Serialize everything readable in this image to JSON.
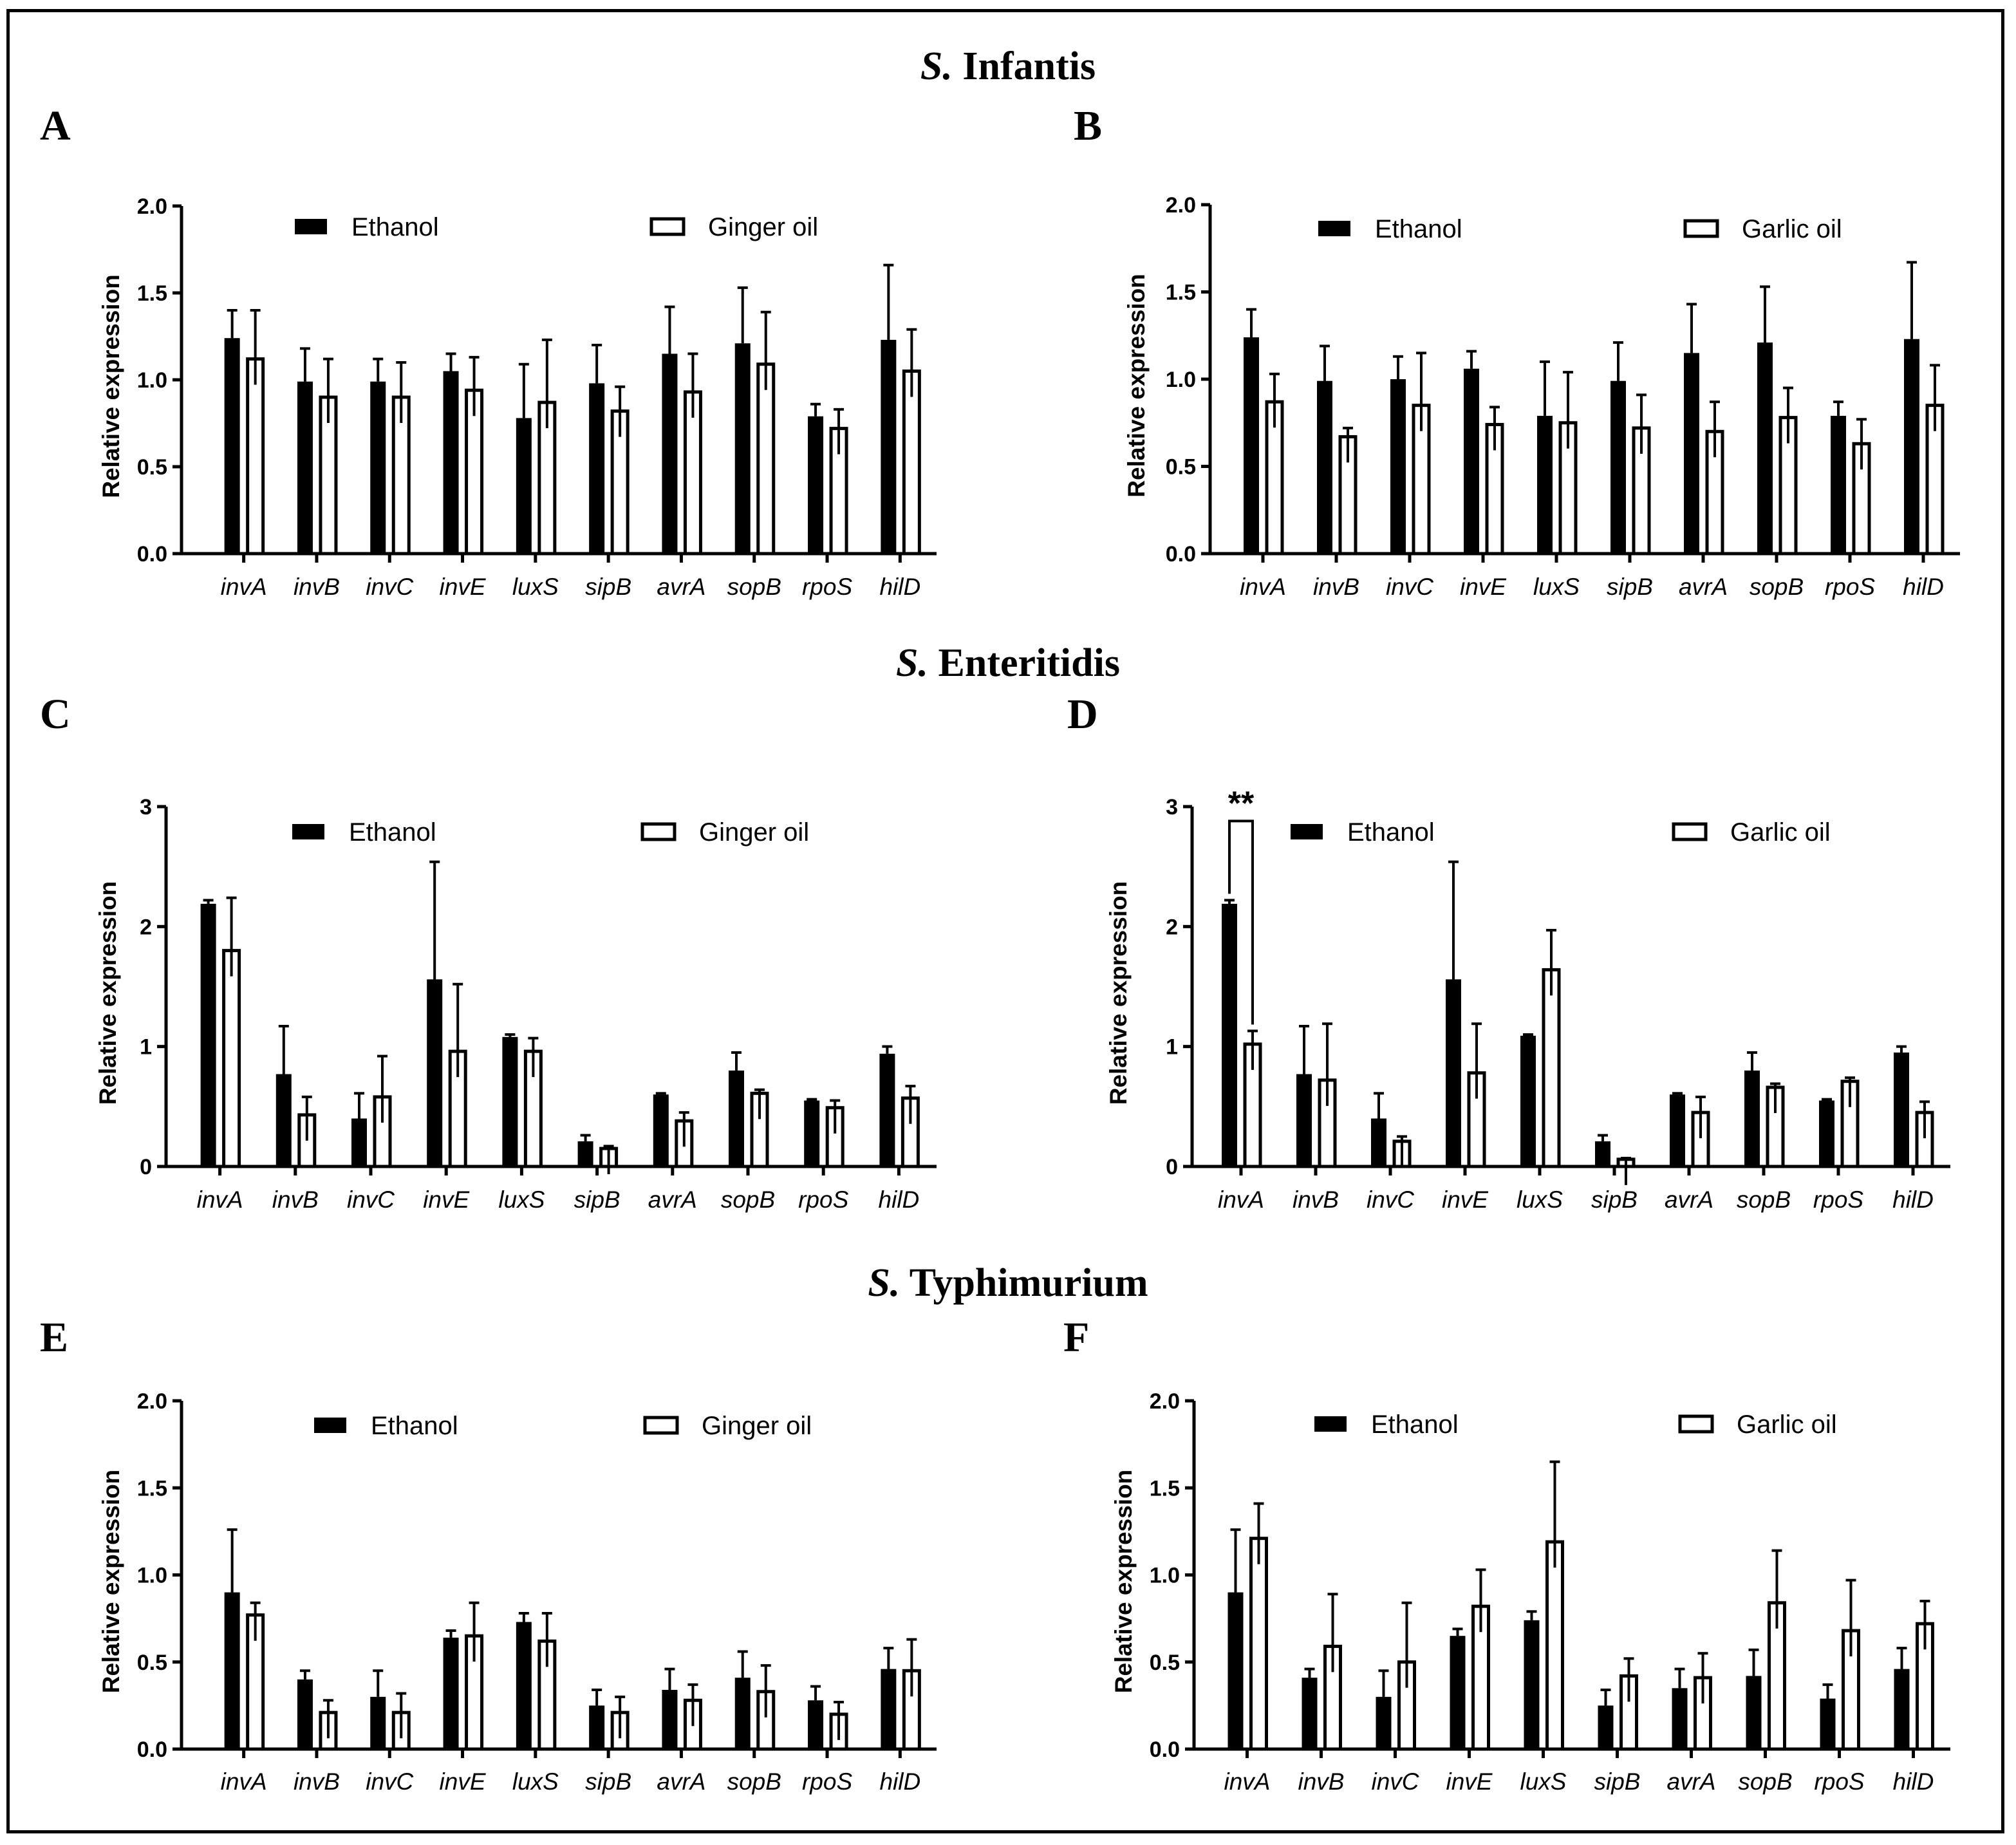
{
  "sections": [
    {
      "prefix": "S.",
      "name": "Infantis"
    },
    {
      "prefix": "S.",
      "name": "Enteritidis"
    },
    {
      "prefix": "S.",
      "name": "Typhimurium"
    }
  ],
  "colors": {
    "ethanol_fill": "#000000",
    "oil_fill": "#ffffff",
    "stroke": "#000000"
  },
  "chart_data": [
    {
      "panel": "A",
      "type": "bar",
      "ylabel": "Relative expression",
      "ylim": [
        0,
        2.0
      ],
      "yticks": [
        "0.0",
        "0.5",
        "1.0",
        "1.5",
        "2.0"
      ],
      "categories": [
        "invA",
        "invB",
        "invC",
        "invE",
        "luxS",
        "sipB",
        "avrA",
        "sopB",
        "rpoS",
        "hilD"
      ],
      "series": [
        {
          "name": "Ethanol",
          "values": [
            1.24,
            0.99,
            0.99,
            1.05,
            0.78,
            0.98,
            1.15,
            1.21,
            0.79,
            1.23
          ],
          "errors": [
            0.16,
            0.19,
            0.13,
            0.1,
            0.31,
            0.22,
            0.27,
            0.32,
            0.07,
            0.43
          ]
        },
        {
          "name": "Ginger oil",
          "values": [
            1.12,
            0.9,
            0.9,
            0.94,
            0.87,
            0.82,
            0.93,
            1.09,
            0.72,
            1.05
          ],
          "errors": [
            0.28,
            0.22,
            0.2,
            0.19,
            0.36,
            0.14,
            0.22,
            0.3,
            0.11,
            0.24
          ]
        }
      ],
      "annotations": []
    },
    {
      "panel": "B",
      "type": "bar",
      "ylabel": "Relative expression",
      "ylim": [
        0,
        2.0
      ],
      "yticks": [
        "0.0",
        "0.5",
        "1.0",
        "1.5",
        "2.0"
      ],
      "categories": [
        "invA",
        "invB",
        "invC",
        "invE",
        "luxS",
        "sipB",
        "avrA",
        "sopB",
        "rpoS",
        "hilD"
      ],
      "series": [
        {
          "name": "Ethanol",
          "values": [
            1.24,
            0.99,
            1.0,
            1.06,
            0.79,
            0.99,
            1.15,
            1.21,
            0.79,
            1.23
          ],
          "errors": [
            0.16,
            0.2,
            0.13,
            0.1,
            0.31,
            0.22,
            0.28,
            0.32,
            0.08,
            0.44
          ]
        },
        {
          "name": "Garlic oil",
          "values": [
            0.87,
            0.67,
            0.85,
            0.74,
            0.75,
            0.72,
            0.7,
            0.78,
            0.63,
            0.85
          ],
          "errors": [
            0.16,
            0.05,
            0.3,
            0.1,
            0.29,
            0.19,
            0.17,
            0.17,
            0.14,
            0.23
          ]
        }
      ],
      "annotations": []
    },
    {
      "panel": "C",
      "type": "bar",
      "ylabel": "Relative expression",
      "ylim": [
        0,
        3
      ],
      "yticks": [
        "0",
        "1",
        "2",
        "3"
      ],
      "categories": [
        "invA",
        "invB",
        "invC",
        "invE",
        "luxS",
        "sipB",
        "avrA",
        "sopB",
        "rpoS",
        "hilD"
      ],
      "series": [
        {
          "name": "Ethanol",
          "values": [
            2.19,
            0.77,
            0.4,
            1.56,
            1.08,
            0.21,
            0.6,
            0.8,
            0.55,
            0.94
          ],
          "errors": [
            0.03,
            0.4,
            0.21,
            0.98,
            0.02,
            0.05,
            0.01,
            0.15,
            0.01,
            0.06
          ]
        },
        {
          "name": "Ginger oil",
          "values": [
            1.8,
            0.43,
            0.58,
            0.96,
            0.96,
            0.15,
            0.38,
            0.61,
            0.49,
            0.57
          ],
          "errors": [
            0.44,
            0.15,
            0.34,
            0.56,
            0.11,
            0.02,
            0.07,
            0.03,
            0.06,
            0.1
          ]
        }
      ],
      "annotations": []
    },
    {
      "panel": "D",
      "type": "bar",
      "ylabel": "Relative expression",
      "ylim": [
        0,
        3
      ],
      "yticks": [
        "0",
        "1",
        "2",
        "3"
      ],
      "categories": [
        "invA",
        "invB",
        "invC",
        "invE",
        "luxS",
        "sipB",
        "avrA",
        "sopB",
        "rpoS",
        "hilD"
      ],
      "series": [
        {
          "name": "Ethanol",
          "values": [
            2.19,
            0.77,
            0.4,
            1.56,
            1.09,
            0.21,
            0.6,
            0.8,
            0.55,
            0.95
          ],
          "errors": [
            0.03,
            0.4,
            0.21,
            0.98,
            0.01,
            0.05,
            0.01,
            0.15,
            0.01,
            0.05
          ]
        },
        {
          "name": "Garlic oil",
          "values": [
            1.02,
            0.72,
            0.21,
            0.78,
            1.64,
            0.06,
            0.45,
            0.66,
            0.71,
            0.45
          ],
          "errors": [
            0.11,
            0.47,
            0.04,
            0.41,
            0.33,
            0.01,
            0.13,
            0.03,
            0.03,
            0.09
          ]
        }
      ],
      "annotations": [
        {
          "text": "**",
          "category": "invA",
          "y": 2.9
        }
      ]
    },
    {
      "panel": "E",
      "type": "bar",
      "ylabel": "Relative expression",
      "ylim": [
        0,
        2.0
      ],
      "yticks": [
        "0.0",
        "0.5",
        "1.0",
        "1.5",
        "2.0"
      ],
      "categories": [
        "invA",
        "invB",
        "invC",
        "invE",
        "luxS",
        "sipB",
        "avrA",
        "sopB",
        "rpoS",
        "hilD"
      ],
      "series": [
        {
          "name": "Ethanol",
          "values": [
            0.9,
            0.4,
            0.3,
            0.64,
            0.73,
            0.25,
            0.34,
            0.41,
            0.28,
            0.46
          ],
          "errors": [
            0.36,
            0.05,
            0.15,
            0.04,
            0.05,
            0.09,
            0.12,
            0.15,
            0.08,
            0.12
          ]
        },
        {
          "name": "Ginger oil",
          "values": [
            0.77,
            0.21,
            0.21,
            0.65,
            0.62,
            0.21,
            0.28,
            0.33,
            0.2,
            0.45
          ],
          "errors": [
            0.07,
            0.07,
            0.11,
            0.19,
            0.16,
            0.09,
            0.09,
            0.15,
            0.07,
            0.18
          ]
        }
      ],
      "annotations": []
    },
    {
      "panel": "F",
      "type": "bar",
      "ylabel": "Relative expression",
      "ylim": [
        0,
        2.0
      ],
      "yticks": [
        "0.0",
        "0.5",
        "1.0",
        "1.5",
        "2.0"
      ],
      "categories": [
        "invA",
        "invB",
        "invC",
        "invE",
        "luxS",
        "sipB",
        "avrA",
        "sopB",
        "rpoS",
        "hilD"
      ],
      "series": [
        {
          "name": "Ethanol",
          "values": [
            0.9,
            0.41,
            0.3,
            0.65,
            0.74,
            0.25,
            0.35,
            0.42,
            0.29,
            0.46
          ],
          "errors": [
            0.36,
            0.05,
            0.15,
            0.04,
            0.05,
            0.09,
            0.11,
            0.15,
            0.08,
            0.12
          ]
        },
        {
          "name": "Garlic oil",
          "values": [
            1.21,
            0.59,
            0.5,
            0.82,
            1.19,
            0.42,
            0.41,
            0.84,
            0.68,
            0.72
          ],
          "errors": [
            0.2,
            0.3,
            0.34,
            0.21,
            0.46,
            0.1,
            0.14,
            0.3,
            0.29,
            0.13
          ]
        }
      ],
      "annotations": []
    }
  ]
}
